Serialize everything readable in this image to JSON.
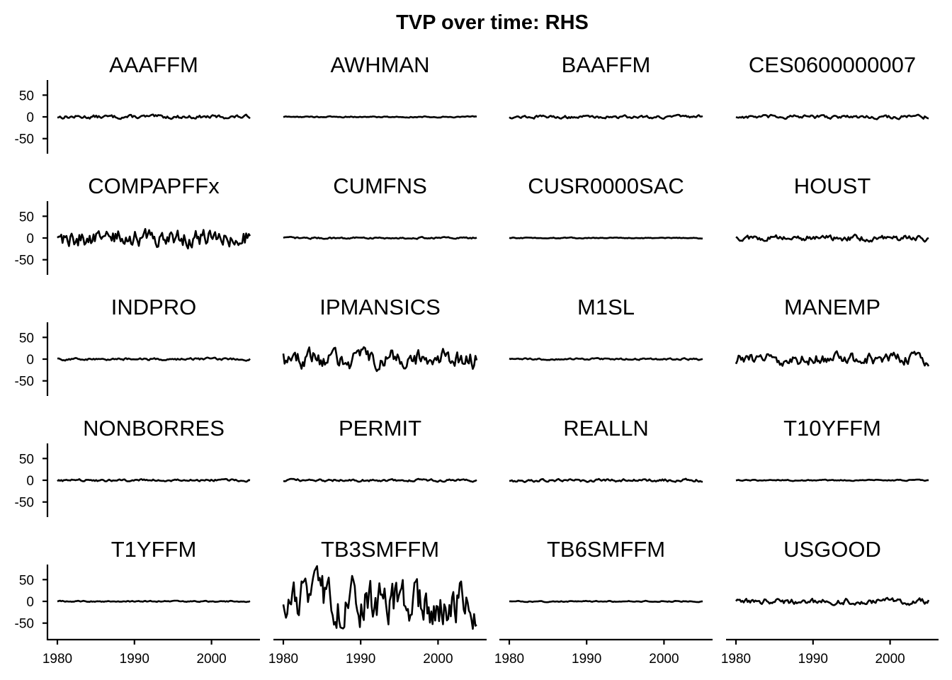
{
  "title": "TVP over time: RHS",
  "chart_data": {
    "type": "line",
    "layout": "facet-grid",
    "title": "TVP over time: RHS",
    "xlabel": "",
    "ylabel": "",
    "xlim": [
      1980,
      2005
    ],
    "ylim": [
      -85,
      85
    ],
    "x_ticks": [
      1980,
      1990,
      2000
    ],
    "y_ticks": [
      50,
      0,
      -50
    ],
    "x_tick_labels": [
      "1980",
      "1990",
      "2000"
    ],
    "y_tick_labels": [
      "50",
      "0",
      "-50"
    ],
    "line_color": "#000000",
    "grid": false,
    "facets": [
      {
        "name": "AAAFFM",
        "amp": 3
      },
      {
        "name": "AWHMAN",
        "amp": 1
      },
      {
        "name": "BAAFFM",
        "amp": 2.5
      },
      {
        "name": "CES0600000007",
        "amp": 3
      },
      {
        "name": "COMPAPFFx",
        "amp": 15
      },
      {
        "name": "CUMFNS",
        "amp": 1.5
      },
      {
        "name": "CUSR0000SAC",
        "amp": 0.8
      },
      {
        "name": "HOUST",
        "amp": 5
      },
      {
        "name": "INDPRO",
        "amp": 2
      },
      {
        "name": "IPMANSICS",
        "amp": 16
      },
      {
        "name": "M1SL",
        "amp": 1.5
      },
      {
        "name": "MANEMP",
        "amp": 10
      },
      {
        "name": "NONBORRES",
        "amp": 2
      },
      {
        "name": "PERMIT",
        "amp": 2
      },
      {
        "name": "REALLN",
        "amp": 2.5
      },
      {
        "name": "T10YFFM",
        "amp": 1
      },
      {
        "name": "T1YFFM",
        "amp": 1
      },
      {
        "name": "TB3SMFFM",
        "amp": 38
      },
      {
        "name": "TB6SMFFM",
        "amp": 1
      },
      {
        "name": "USGOOD",
        "amp": 5
      }
    ]
  }
}
